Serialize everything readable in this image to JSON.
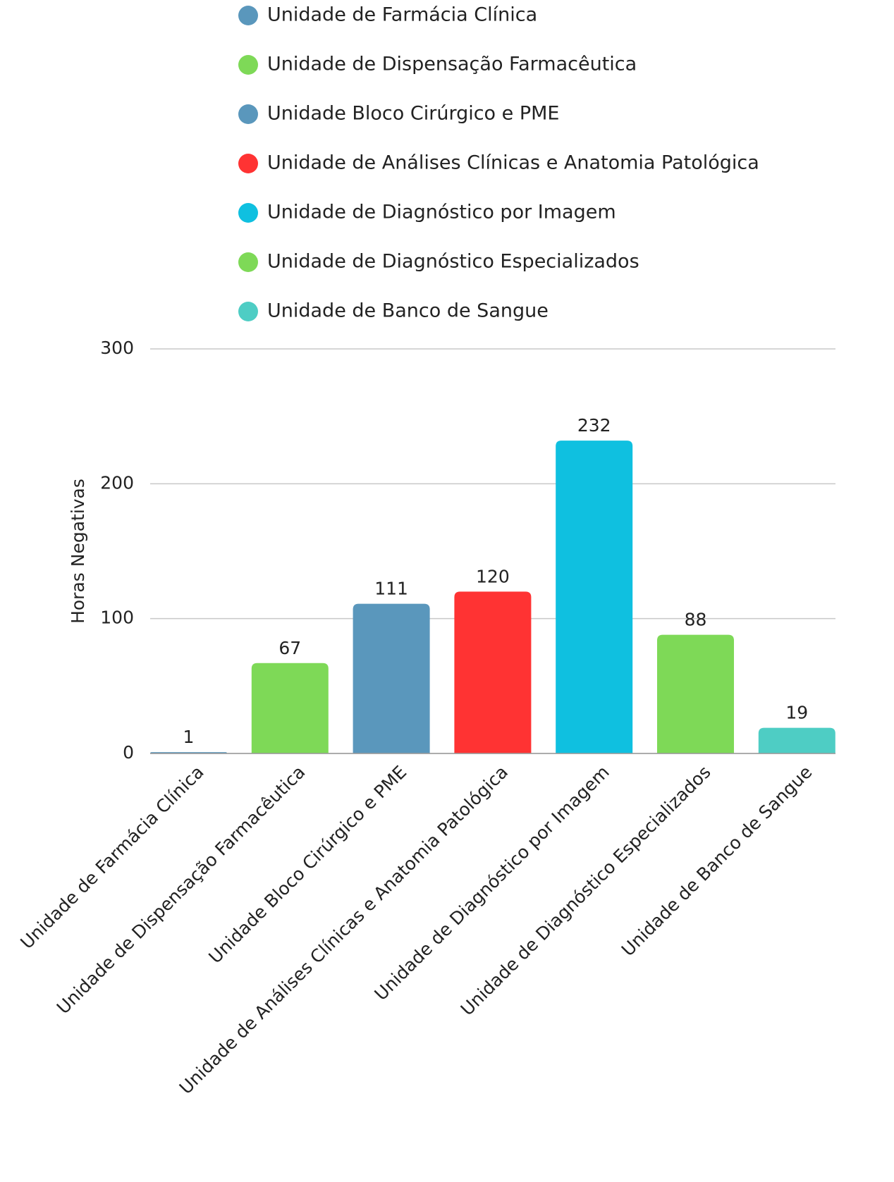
{
  "chart_data": {
    "type": "bar",
    "y_label": "Horas Negativas",
    "categories": [
      "Unidade de Farmácia Clínica",
      "Unidade de Dispensação Farmacêutica",
      "Unidade Bloco Cirúrgico e PME",
      "Unidade de Análises Clínicas e Anatomia Patológica",
      "Unidade de Diagnóstico por Imagem",
      "Unidade de Diagnóstico Especializados",
      "Unidade de Banco de Sangue"
    ],
    "values": [
      1,
      67,
      111,
      120,
      232,
      88,
      19
    ],
    "colors": [
      "#5a97bc",
      "#7ed957",
      "#5a97bc",
      "#ff3333",
      "#0fc0e0",
      "#7ed957",
      "#4ecdc4"
    ],
    "ylim": [
      0,
      300
    ],
    "yticks": [
      0,
      100,
      200,
      300
    ],
    "grid": true,
    "legend": "top"
  }
}
